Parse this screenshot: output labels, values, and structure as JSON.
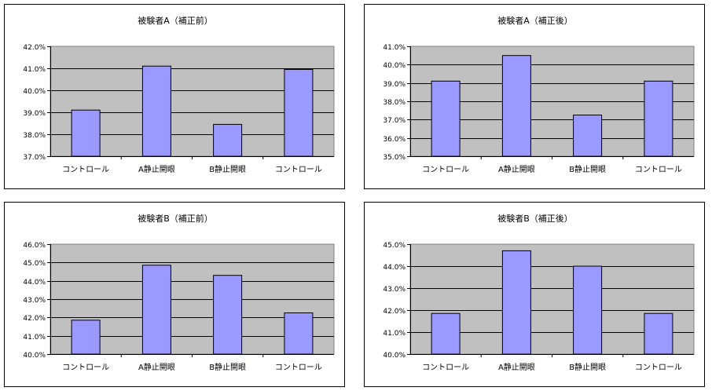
{
  "chart_data": [
    {
      "type": "bar",
      "title": "被験者A（補正前）",
      "categories": [
        "コントロール",
        "A静止開眼",
        "B静止開眼",
        "コントロール"
      ],
      "values": [
        39.1,
        41.1,
        38.45,
        40.95
      ],
      "ylim": [
        37.0,
        42.0
      ],
      "yticks": [
        "37.0%",
        "38.0%",
        "39.0%",
        "40.0%",
        "41.0%",
        "42.0%"
      ],
      "grid": true,
      "legend": "none",
      "colors": {
        "bar": "#9999ff",
        "plot_bg": "#c0c0c0"
      }
    },
    {
      "type": "bar",
      "title": "被験者A（補正後）",
      "categories": [
        "コントロール",
        "A静止開眼",
        "B静止開眼",
        "コントロール"
      ],
      "values": [
        39.1,
        40.5,
        37.25,
        39.1
      ],
      "ylim": [
        35.0,
        41.0
      ],
      "yticks": [
        "35.0%",
        "36.0%",
        "37.0%",
        "38.0%",
        "39.0%",
        "40.0%",
        "41.0%"
      ],
      "grid": true,
      "legend": "none",
      "colors": {
        "bar": "#9999ff",
        "plot_bg": "#c0c0c0"
      }
    },
    {
      "type": "bar",
      "title": "被験者B（補正前）",
      "categories": [
        "コントロール",
        "A静止開眼",
        "B静止開眼",
        "コントロール"
      ],
      "values": [
        41.85,
        44.85,
        44.3,
        42.25
      ],
      "ylim": [
        40.0,
        46.0
      ],
      "yticks": [
        "40.0%",
        "41.0%",
        "42.0%",
        "43.0%",
        "44.0%",
        "45.0%",
        "46.0%"
      ],
      "grid": true,
      "legend": "none",
      "colors": {
        "bar": "#9999ff",
        "plot_bg": "#c0c0c0"
      }
    },
    {
      "type": "bar",
      "title": "被験者B（補正後）",
      "categories": [
        "コントロール",
        "A静止開眼",
        "B静止開眼",
        "コントロール"
      ],
      "values": [
        41.85,
        44.7,
        44.0,
        41.85
      ],
      "ylim": [
        40.0,
        45.0
      ],
      "yticks": [
        "40.0%",
        "41.0%",
        "42.0%",
        "43.0%",
        "44.0%",
        "45.0%"
      ],
      "grid": true,
      "legend": "none",
      "colors": {
        "bar": "#9999ff",
        "plot_bg": "#c0c0c0"
      }
    }
  ]
}
